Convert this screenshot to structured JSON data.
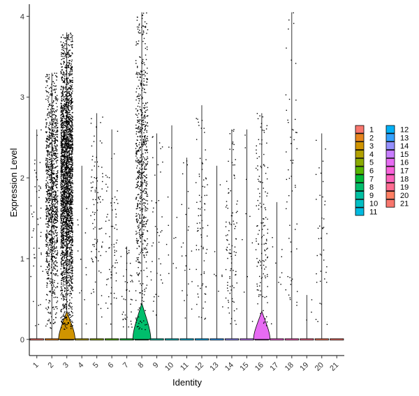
{
  "chart_data": {
    "type": "violin",
    "title": "",
    "xlabel": "Identity",
    "ylabel": "Expression Level",
    "ylim": [
      -0.2,
      4.15
    ],
    "yticks": [
      0,
      1,
      2,
      3,
      4
    ],
    "grid": false,
    "legend_position": "right",
    "categories": [
      "1",
      "2",
      "3",
      "4",
      "5",
      "6",
      "7",
      "8",
      "9",
      "10",
      "11",
      "12",
      "13",
      "14",
      "15",
      "16",
      "17",
      "18",
      "19",
      "20",
      "21"
    ],
    "colors": [
      "#F8766D",
      "#E7851E",
      "#D09400",
      "#B2A100",
      "#8BAB00",
      "#55B500",
      "#00BA38",
      "#00BE6C",
      "#00C1A3",
      "#00BFC4",
      "#00BAE0",
      "#00B0F6",
      "#35A2FF",
      "#9590FF",
      "#C77CFF",
      "#E76BF3",
      "#FA62DB",
      "#FF62BC",
      "#FF6C91",
      "#FF7F63",
      "#F8766D"
    ],
    "series": [
      {
        "name": "1",
        "max": 2.6,
        "point_count": 45,
        "violin_peak_y": 0.35,
        "violin_width": 0.0
      },
      {
        "name": "2",
        "max": 3.3,
        "point_count": 1100,
        "violin_peak_y": 0.0,
        "violin_width": 0.0
      },
      {
        "name": "3",
        "max": 3.8,
        "point_count": 2600,
        "violin_peak_y": 0.35,
        "violin_width": 0.55
      },
      {
        "name": "4",
        "max": 2.15,
        "point_count": 12,
        "violin_peak_y": 0.0,
        "violin_width": 0.0
      },
      {
        "name": "5",
        "max": 2.8,
        "point_count": 90,
        "violin_peak_y": 0.0,
        "violin_width": 0.0
      },
      {
        "name": "6",
        "max": 2.6,
        "point_count": 70,
        "violin_peak_y": 0.0,
        "violin_width": 0.0
      },
      {
        "name": "7",
        "max": 1.15,
        "point_count": 40,
        "violin_peak_y": 0.0,
        "violin_width": 0.0
      },
      {
        "name": "8",
        "max": 4.05,
        "point_count": 650,
        "violin_peak_y": 0.45,
        "violin_width": 0.6
      },
      {
        "name": "9",
        "max": 2.55,
        "point_count": 40,
        "violin_peak_y": 0.0,
        "violin_width": 0.0
      },
      {
        "name": "10",
        "max": 2.65,
        "point_count": 12,
        "violin_peak_y": 0.0,
        "violin_width": 0.0
      },
      {
        "name": "11",
        "max": 2.25,
        "point_count": 25,
        "violin_peak_y": 0.0,
        "violin_width": 0.0
      },
      {
        "name": "12",
        "max": 2.9,
        "point_count": 80,
        "violin_peak_y": 0.0,
        "violin_width": 0.0
      },
      {
        "name": "13",
        "max": 2.15,
        "point_count": 8,
        "violin_peak_y": 0.0,
        "violin_width": 0.0
      },
      {
        "name": "14",
        "max": 2.6,
        "point_count": 100,
        "violin_peak_y": 0.0,
        "violin_width": 0.0
      },
      {
        "name": "15",
        "max": 2.6,
        "point_count": 10,
        "violin_peak_y": 0.0,
        "violin_width": 0.0
      },
      {
        "name": "16",
        "max": 2.8,
        "point_count": 140,
        "violin_peak_y": 0.35,
        "violin_width": 0.55
      },
      {
        "name": "17",
        "max": 1.7,
        "point_count": 10,
        "violin_peak_y": 0.0,
        "violin_width": 0.0
      },
      {
        "name": "18",
        "max": 4.05,
        "point_count": 55,
        "violin_peak_y": 0.0,
        "violin_width": 0.0
      },
      {
        "name": "19",
        "max": 0.55,
        "point_count": 3,
        "violin_peak_y": 0.0,
        "violin_width": 0.0
      },
      {
        "name": "20",
        "max": 2.55,
        "point_count": 40,
        "violin_peak_y": 0.0,
        "violin_width": 0.0
      },
      {
        "name": "21",
        "max": 0.0,
        "point_count": 0,
        "violin_peak_y": 0.0,
        "violin_width": 0.0
      }
    ]
  }
}
